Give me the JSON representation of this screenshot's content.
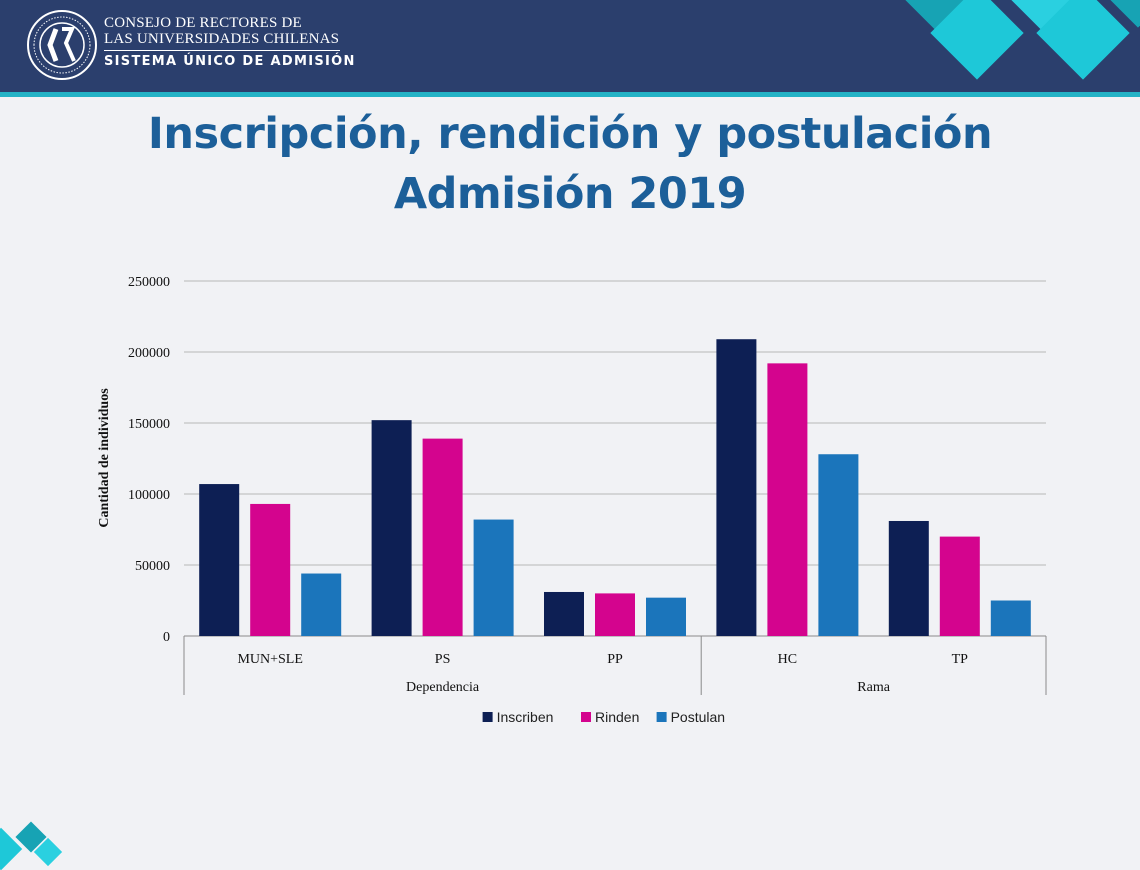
{
  "header": {
    "org_line1": "CONSEJO DE RECTORES DE",
    "org_line2": "LAS UNIVERSIDADES CHILENAS",
    "org_sub": "SISTEMA ÚNICO DE ADMISIÓN",
    "logo_ring_text": "CONSEJO DE RECTORES DE LAS UNIVERSIDADES CHILENAS",
    "colors": {
      "background": "#2b3f6d",
      "stripe": "#24b3c6",
      "diamond_light": "#1ec8d8",
      "diamond_mid": "#17a3b4"
    }
  },
  "slide": {
    "title_line1": "Inscripción, rendición y postulación",
    "title_line2": "Admisión 2019",
    "title_color": "#1c5f99"
  },
  "chart_data": {
    "type": "bar",
    "title": "",
    "xlabel": "",
    "ylabel": "Cantidad de individuos",
    "ylim": [
      0,
      250000
    ],
    "yticks": [
      0,
      50000,
      100000,
      150000,
      200000,
      250000
    ],
    "grid": true,
    "legend_position": "bottom",
    "categories": [
      "MUN+SLE",
      "PS",
      "PP",
      "HC",
      "TP"
    ],
    "groups": [
      {
        "label": "Dependencia",
        "categories": [
          "MUN+SLE",
          "PS",
          "PP"
        ]
      },
      {
        "label": "Rama",
        "categories": [
          "HC",
          "TP"
        ]
      }
    ],
    "series": [
      {
        "name": "Inscriben",
        "color": "#0d1f54",
        "values": [
          107000,
          152000,
          31000,
          209000,
          81000
        ]
      },
      {
        "name": "Rinden",
        "color": "#d4048e",
        "values": [
          93000,
          139000,
          30000,
          192000,
          70000
        ]
      },
      {
        "name": "Postulan",
        "color": "#1b75bb",
        "values": [
          44000,
          82000,
          27000,
          128000,
          25000
        ]
      }
    ]
  }
}
